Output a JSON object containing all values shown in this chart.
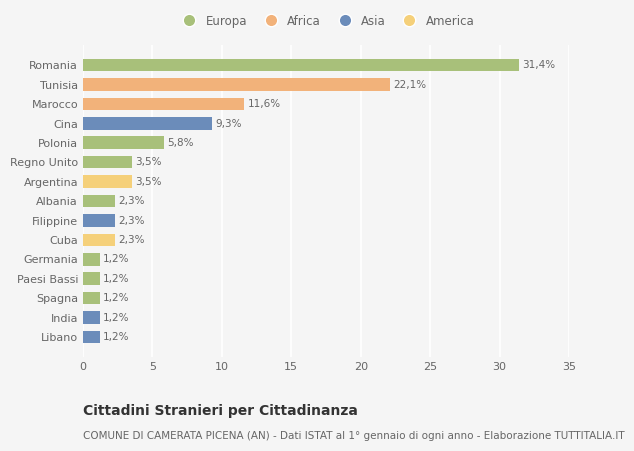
{
  "categories": [
    "Romania",
    "Tunisia",
    "Marocco",
    "Cina",
    "Polonia",
    "Regno Unito",
    "Argentina",
    "Albania",
    "Filippine",
    "Cuba",
    "Germania",
    "Paesi Bassi",
    "Spagna",
    "India",
    "Libano"
  ],
  "values": [
    31.4,
    22.1,
    11.6,
    9.3,
    5.8,
    3.5,
    3.5,
    2.3,
    2.3,
    2.3,
    1.2,
    1.2,
    1.2,
    1.2,
    1.2
  ],
  "labels": [
    "31,4%",
    "22,1%",
    "11,6%",
    "9,3%",
    "5,8%",
    "3,5%",
    "3,5%",
    "2,3%",
    "2,3%",
    "2,3%",
    "1,2%",
    "1,2%",
    "1,2%",
    "1,2%",
    "1,2%"
  ],
  "colors": [
    "#a8c07a",
    "#f2b27a",
    "#f2b27a",
    "#6b8cba",
    "#a8c07a",
    "#a8c07a",
    "#f5d07a",
    "#a8c07a",
    "#6b8cba",
    "#f5d07a",
    "#a8c07a",
    "#a8c07a",
    "#a8c07a",
    "#6b8cba",
    "#6b8cba"
  ],
  "legend_labels": [
    "Europa",
    "Africa",
    "Asia",
    "America"
  ],
  "legend_colors": [
    "#a8c07a",
    "#f2b27a",
    "#6b8cba",
    "#f5d07a"
  ],
  "title": "Cittadini Stranieri per Cittadinanza",
  "subtitle": "COMUNE DI CAMERATA PICENA (AN) - Dati ISTAT al 1° gennaio di ogni anno - Elaborazione TUTTITALIA.IT",
  "xlim": [
    0,
    35
  ],
  "xticks": [
    0,
    5,
    10,
    15,
    20,
    25,
    30,
    35
  ],
  "background_color": "#f5f5f5",
  "bar_height": 0.65,
  "title_fontsize": 10,
  "subtitle_fontsize": 7.5,
  "label_fontsize": 7.5,
  "tick_fontsize": 8,
  "legend_fontsize": 8.5,
  "grid_color": "#ffffff",
  "text_color": "#666666",
  "title_color": "#333333"
}
